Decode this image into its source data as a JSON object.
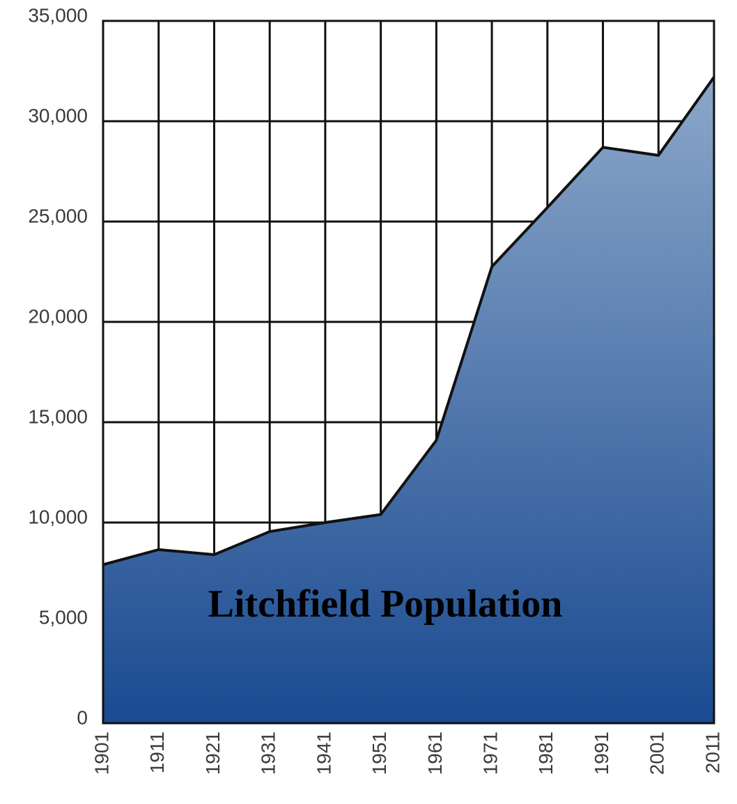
{
  "chart_data": {
    "type": "area",
    "title": "Litchfield Population",
    "x": [
      1901,
      1911,
      1921,
      1931,
      1941,
      1951,
      1961,
      1971,
      1981,
      1991,
      2001,
      2011
    ],
    "values": [
      7900,
      8650,
      8400,
      9550,
      10000,
      10400,
      14100,
      22750,
      25700,
      28700,
      28300,
      32200
    ],
    "xlim": [
      1901,
      2011
    ],
    "xticks": [
      1901,
      1911,
      1921,
      1931,
      1941,
      1951,
      1961,
      1971,
      1981,
      1991,
      2001,
      2011
    ],
    "ylim": [
      0,
      35000
    ],
    "yticks": [
      0,
      {
        "value": 5000,
        "label": "5,000"
      },
      {
        "value": 10000,
        "label": "10,000"
      },
      {
        "value": 15000,
        "label": "15,000"
      },
      {
        "value": 20000,
        "label": "20,000"
      },
      {
        "value": 25000,
        "label": "25,000"
      },
      {
        "value": 30000,
        "label": "30,000"
      },
      {
        "value": 35000,
        "label": "35,000"
      }
    ],
    "grid": true,
    "color_top": "#8ba7c9",
    "color_bottom": "#1a4a91",
    "line_color": "#111111"
  }
}
